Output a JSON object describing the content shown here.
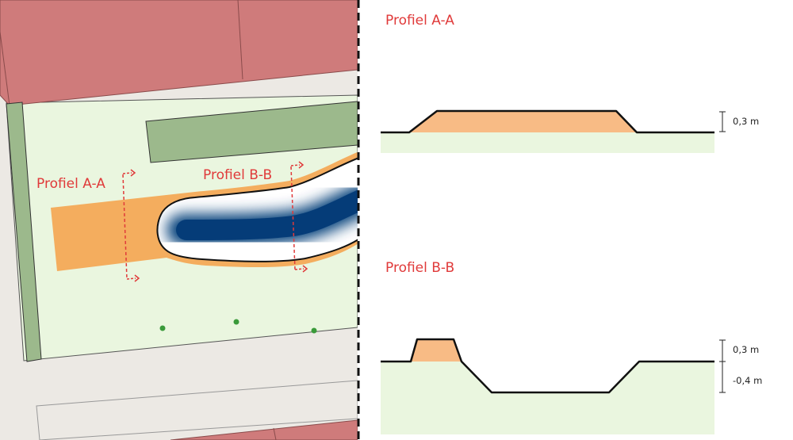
{
  "map": {
    "label_a": "Profiel A-A",
    "label_b": "Profiel B-B"
  },
  "profile_a": {
    "title": "Profiel A-A",
    "height_label": "0,3 m"
  },
  "profile_b": {
    "title": "Profiel B-B",
    "height_label": "0,3 m",
    "depth_label": "-0,4 m"
  },
  "colors": {
    "buildings": "#cf7b7b",
    "pavement": "#ece9e4",
    "lawn": "#eaf6df",
    "hedge": "#9cb98c",
    "berm": "#f4ad5e",
    "berm_profile": "#f8bb85",
    "water_deep": "#053c78",
    "water_edge": "#ffffff",
    "accent": "#e03a3a",
    "tree": "#3a9a3a",
    "outline": "#111111"
  }
}
